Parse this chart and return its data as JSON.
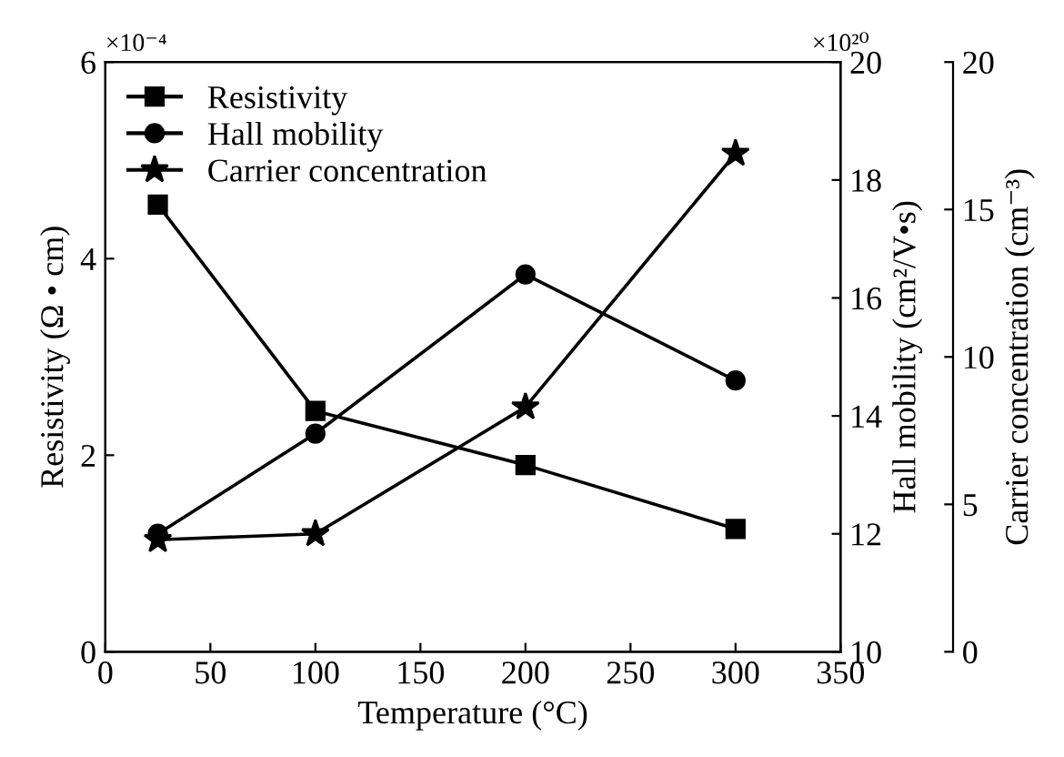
{
  "chart_data": {
    "type": "line",
    "xlabel": "Temperature (°C)",
    "ylabel": "Resistivity (Ω • cm)",
    "y2label": "Hall mobility (cm²/V•s)",
    "y3label": "Carrier concentration (cm⁻³)",
    "x": [
      25,
      100,
      200,
      300
    ],
    "series": [
      {
        "name": "Resistivity",
        "color": "#000000",
        "marker": "square",
        "axis": "y",
        "values": [
          4.55,
          2.45,
          1.9,
          1.25
        ]
      },
      {
        "name": "Hall mobility",
        "color": "#000000",
        "marker": "circle",
        "axis": "y2",
        "values": [
          12.0,
          13.7,
          16.4,
          14.6
        ]
      },
      {
        "name": "Carrier concentration",
        "color": "#000000",
        "marker": "star",
        "axis": "y3",
        "values": [
          3.8,
          4.0,
          8.3,
          16.9
        ]
      }
    ],
    "xlim": [
      0,
      350
    ],
    "xticks": [
      0,
      50,
      100,
      150,
      200,
      250,
      300,
      350
    ],
    "ylim": [
      0,
      6
    ],
    "yticks": [
      0,
      2,
      4,
      6
    ],
    "y2lim": [
      10,
      20
    ],
    "y2ticks": [
      10,
      12,
      14,
      16,
      18,
      20
    ],
    "y3lim": [
      0,
      20
    ],
    "y3ticks": [
      0,
      5,
      10,
      15,
      20
    ],
    "annotations": [
      "×10⁻⁴",
      "×10²⁰"
    ],
    "legend": "top left",
    "line_style": "solid",
    "grid": false
  }
}
